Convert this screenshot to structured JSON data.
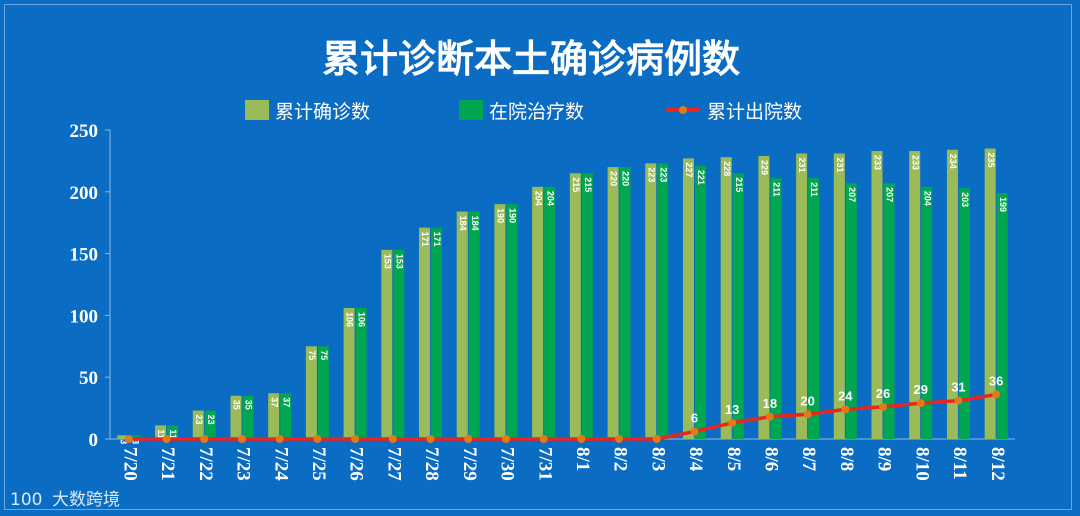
{
  "chart_data": {
    "type": "bar",
    "title": "累计诊断本土确诊病例数",
    "categories": [
      "7/20",
      "7/21",
      "7/22",
      "7/23",
      "7/24",
      "7/25",
      "7/26",
      "7/27",
      "7/28",
      "7/29",
      "7/30",
      "7/31",
      "8/1",
      "8/2",
      "8/3",
      "8/4",
      "8/5",
      "8/6",
      "8/7",
      "8/8",
      "8/9",
      "8/10",
      "8/11",
      "8/12"
    ],
    "series": [
      {
        "name": "累计确诊数",
        "kind": "bar",
        "color": "#9bbb59",
        "values": [
          3,
          11,
          23,
          35,
          37,
          75,
          106,
          153,
          171,
          184,
          190,
          204,
          215,
          220,
          223,
          227,
          228,
          229,
          231,
          231,
          233,
          233,
          234,
          235
        ]
      },
      {
        "name": "在院治疗数",
        "kind": "bar",
        "color": "#00a650",
        "values": [
          3,
          11,
          23,
          35,
          37,
          75,
          106,
          153,
          171,
          184,
          190,
          204,
          215,
          220,
          223,
          221,
          215,
          211,
          211,
          207,
          207,
          204,
          203,
          199
        ]
      },
      {
        "name": "累计出院数",
        "kind": "line",
        "color": "#e8251f",
        "marker_color": "#e07b1a",
        "values": [
          0,
          0,
          0,
          0,
          0,
          0,
          0,
          0,
          0,
          0,
          0,
          0,
          0,
          0,
          0,
          6,
          13,
          18,
          20,
          24,
          26,
          29,
          31,
          36
        ],
        "labeled_from_index": 15
      }
    ],
    "yticks": [
      0,
      50,
      100,
      150,
      200,
      250
    ],
    "ylim": [
      0,
      250
    ],
    "xlabel": "",
    "ylabel": "",
    "legend_position": "top-center",
    "grid": false
  },
  "watermark": {
    "logo_text": "100",
    "brand": "大数跨境"
  },
  "colors": {
    "background": "#0a6cc2",
    "axis": "#8fb7de"
  }
}
